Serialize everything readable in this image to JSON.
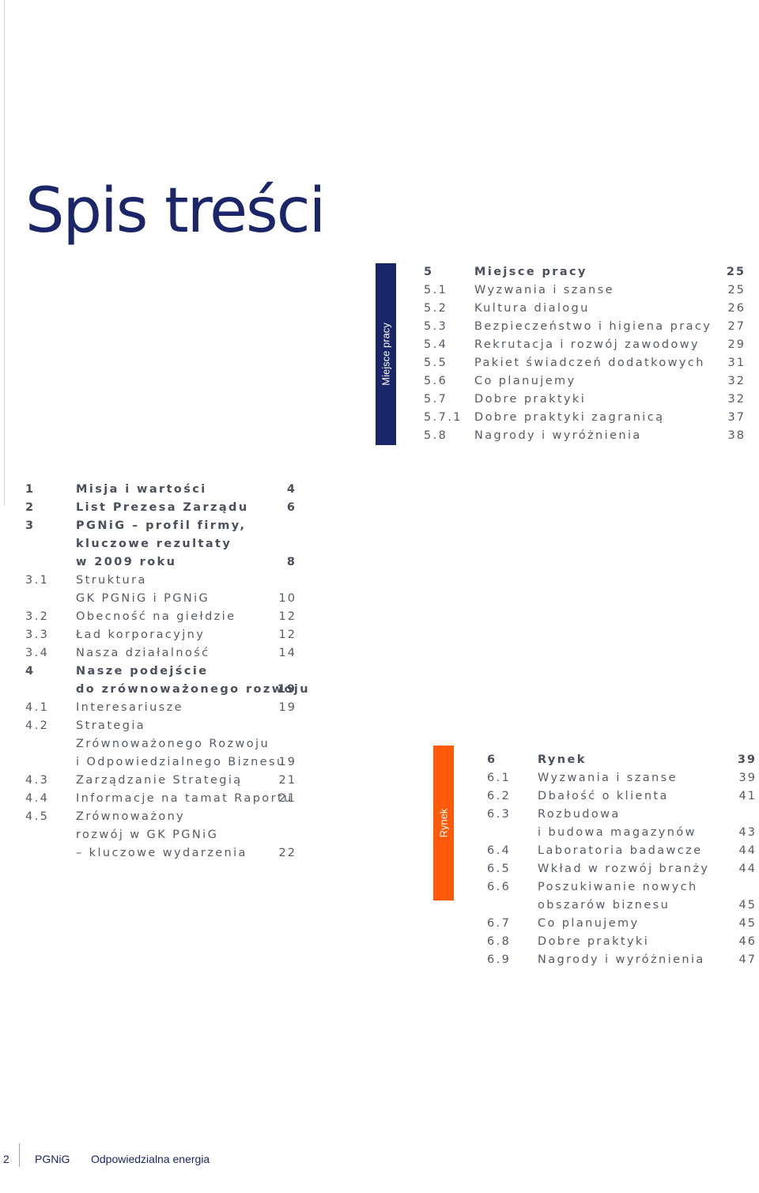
{
  "page_title": "Spis treści",
  "tabs": {
    "workplace": "Miejsce pracy",
    "market": "Rynek"
  },
  "toc_left": [
    {
      "num": "1",
      "text": "Misja i wartości",
      "page": "4",
      "bold": true
    },
    {
      "num": "2",
      "text": "List Prezesa Zarządu",
      "page": "6",
      "bold": true
    },
    {
      "num": "3",
      "text": "PGNiG – profil firmy,",
      "page": "",
      "bold": true
    },
    {
      "num": "",
      "text": "kluczowe rezultaty",
      "page": "",
      "bold": true
    },
    {
      "num": "",
      "text": "w 2009 roku",
      "page": "8",
      "bold": true
    },
    {
      "num": "3.1",
      "text": "Struktura",
      "page": "",
      "bold": false
    },
    {
      "num": "",
      "text": "GK PGNiG i PGNiG",
      "page": "10",
      "bold": false
    },
    {
      "num": "3.2",
      "text": "Obecność na giełdzie",
      "page": "12",
      "bold": false
    },
    {
      "num": "3.3",
      "text": "Ład korporacyjny",
      "page": "12",
      "bold": false
    },
    {
      "num": "3.4",
      "text": "Nasza działalność",
      "page": "14",
      "bold": false
    },
    {
      "num": "4",
      "text": "Nasze podejście",
      "page": "",
      "bold": true
    },
    {
      "num": "",
      "text": "do zrównoważonego rozwoju",
      "page": "19",
      "bold": true
    },
    {
      "num": "4.1",
      "text": "Interesariusze",
      "page": "19",
      "bold": false
    },
    {
      "num": "4.2",
      "text": "Strategia",
      "page": "",
      "bold": false
    },
    {
      "num": "",
      "text": "Zrównoważonego Rozwoju",
      "page": "",
      "bold": false
    },
    {
      "num": "",
      "text": "i Odpowiedzialnego Biznesu",
      "page": "19",
      "bold": false
    },
    {
      "num": "4.3",
      "text": "Zarządzanie Strategią",
      "page": "21",
      "bold": false
    },
    {
      "num": "4.4",
      "text": "Informacje na tamat Raportu",
      "page": "21",
      "bold": false
    },
    {
      "num": "4.5",
      "text": "Zrównoważony",
      "page": "",
      "bold": false
    },
    {
      "num": "",
      "text": "rozwój w GK PGNiG",
      "page": "",
      "bold": false
    },
    {
      "num": "",
      "text": "– kluczowe wydarzenia",
      "page": "22",
      "bold": false
    }
  ],
  "toc_workplace": [
    {
      "num": "5",
      "text": "Miejsce pracy",
      "page": "25",
      "bold": true
    },
    {
      "num": "5.1",
      "text": "Wyzwania i szanse",
      "page": "25",
      "bold": false
    },
    {
      "num": "5.2",
      "text": "Kultura dialogu",
      "page": "26",
      "bold": false
    },
    {
      "num": "5.3",
      "text": "Bezpieczeństwo i higiena pracy",
      "page": "27",
      "bold": false
    },
    {
      "num": "5.4",
      "text": "Rekrutacja i rozwój zawodowy",
      "page": "29",
      "bold": false
    },
    {
      "num": "5.5",
      "text": "Pakiet świadczeń dodatkowych",
      "page": "31",
      "bold": false
    },
    {
      "num": "5.6",
      "text": "Co planujemy",
      "page": "32",
      "bold": false
    },
    {
      "num": "5.7",
      "text": "Dobre praktyki",
      "page": "32",
      "bold": false
    },
    {
      "num": "5.7.1",
      "text": "Dobre praktyki zagranicą",
      "page": "37",
      "bold": false
    },
    {
      "num": "5.8",
      "text": "Nagrody i wyróżnienia",
      "page": "38",
      "bold": false
    }
  ],
  "toc_market": [
    {
      "num": "6",
      "text": "Rynek",
      "page": "39",
      "bold": true
    },
    {
      "num": "6.1",
      "text": "Wyzwania i szanse",
      "page": "39",
      "bold": false
    },
    {
      "num": "6.2",
      "text": "Dbałość o klienta",
      "page": "41",
      "bold": false
    },
    {
      "num": "6.3",
      "text": "Rozbudowa",
      "page": "",
      "bold": false
    },
    {
      "num": "",
      "text": "i budowa magazynów",
      "page": "43",
      "bold": false
    },
    {
      "num": "6.4",
      "text": "Laboratoria badawcze",
      "page": "44",
      "bold": false
    },
    {
      "num": "6.5",
      "text": "Wkład w rozwój branży",
      "page": "44",
      "bold": false
    },
    {
      "num": "6.6",
      "text": "Poszukiwanie nowych",
      "page": "",
      "bold": false
    },
    {
      "num": "",
      "text": "obszarów biznesu",
      "page": "45",
      "bold": false
    },
    {
      "num": "6.7",
      "text": "Co planujemy",
      "page": "45",
      "bold": false
    },
    {
      "num": "6.8",
      "text": "Dobre praktyki",
      "page": "46",
      "bold": false
    },
    {
      "num": "6.9",
      "text": "Nagrody i wyróżnienia",
      "page": "47",
      "bold": false
    }
  ],
  "footer": {
    "page_number": "2",
    "brand": "PGNiG",
    "tagline": "Odpowiedzialna energia"
  },
  "colors": {
    "navy": "#1a2668",
    "orange": "#ff5a0a",
    "text": "#555a66"
  }
}
